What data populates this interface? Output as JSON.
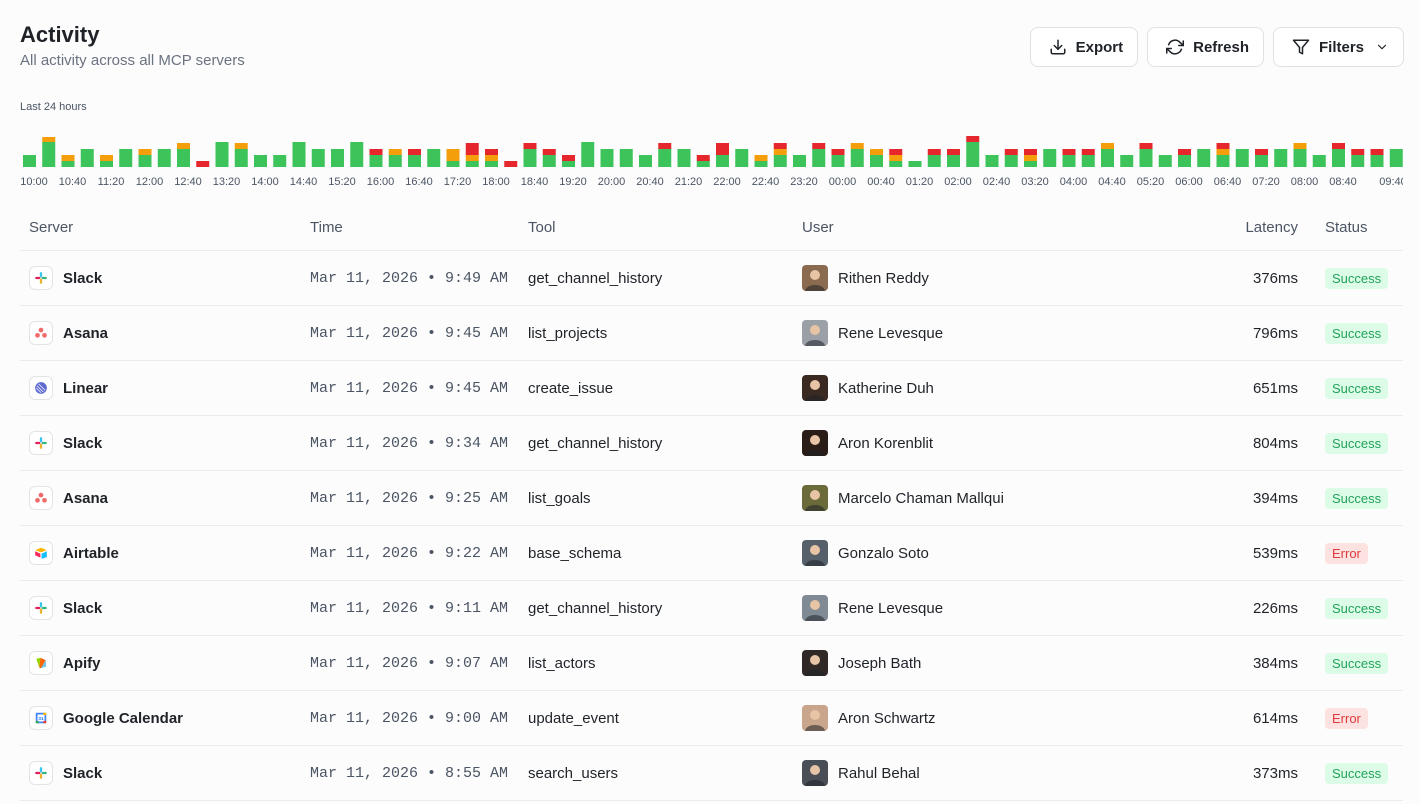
{
  "header": {
    "title": "Activity",
    "subtitle": "All activity across all MCP servers"
  },
  "toolbar": {
    "export_label": "Export",
    "refresh_label": "Refresh",
    "filters_label": "Filters"
  },
  "range_label": "Last 24 hours",
  "colors": {
    "success": "#3cc45a",
    "warning": "#f59e0b",
    "error": "#e5262d",
    "success_badge_bg": "#dcfce7",
    "error_badge_bg": "#fde2e2"
  },
  "chart_data": {
    "type": "bar",
    "stacked": true,
    "series_colors": [
      "#3cc45a",
      "#f59e0b",
      "#e5262d"
    ],
    "bars": [
      [
        12,
        0,
        0
      ],
      [
        25,
        5,
        0
      ],
      [
        6,
        6,
        0
      ],
      [
        18,
        0,
        0
      ],
      [
        6,
        6,
        0
      ],
      [
        18,
        0,
        0
      ],
      [
        12,
        6,
        0
      ],
      [
        18,
        0,
        0
      ],
      [
        18,
        6,
        0
      ],
      [
        0,
        0,
        6
      ],
      [
        25,
        0,
        0
      ],
      [
        18,
        6,
        0
      ],
      [
        12,
        0,
        0
      ],
      [
        12,
        0,
        0
      ],
      [
        25,
        0,
        0
      ],
      [
        18,
        0,
        0
      ],
      [
        18,
        0,
        0
      ],
      [
        25,
        0,
        0
      ],
      [
        12,
        0,
        6
      ],
      [
        12,
        6,
        0
      ],
      [
        12,
        0,
        6
      ],
      [
        18,
        0,
        0
      ],
      [
        6,
        12,
        0
      ],
      [
        6,
        6,
        12
      ],
      [
        6,
        6,
        6
      ],
      [
        0,
        0,
        6
      ],
      [
        18,
        0,
        6
      ],
      [
        12,
        0,
        6
      ],
      [
        6,
        0,
        6
      ],
      [
        25,
        0,
        0
      ],
      [
        18,
        0,
        0
      ],
      [
        18,
        0,
        0
      ],
      [
        12,
        0,
        0
      ],
      [
        18,
        0,
        6
      ],
      [
        18,
        0,
        0
      ],
      [
        6,
        0,
        6
      ],
      [
        12,
        0,
        12
      ],
      [
        18,
        0,
        0
      ],
      [
        6,
        6,
        0
      ],
      [
        12,
        6,
        6
      ],
      [
        12,
        0,
        0
      ],
      [
        18,
        0,
        6
      ],
      [
        12,
        0,
        6
      ],
      [
        18,
        6,
        0
      ],
      [
        12,
        6,
        0
      ],
      [
        6,
        6,
        6
      ],
      [
        6,
        0,
        0
      ],
      [
        12,
        0,
        6
      ],
      [
        12,
        0,
        6
      ],
      [
        25,
        0,
        6
      ],
      [
        12,
        0,
        0
      ],
      [
        12,
        0,
        6
      ],
      [
        6,
        6,
        6
      ],
      [
        18,
        0,
        0
      ],
      [
        12,
        0,
        6
      ],
      [
        12,
        0,
        6
      ],
      [
        18,
        6,
        0
      ],
      [
        12,
        0,
        0
      ],
      [
        18,
        0,
        6
      ],
      [
        12,
        0,
        0
      ],
      [
        12,
        0,
        6
      ],
      [
        18,
        0,
        0
      ],
      [
        12,
        6,
        6
      ],
      [
        18,
        0,
        0
      ],
      [
        12,
        0,
        6
      ],
      [
        18,
        0,
        0
      ],
      [
        18,
        6,
        0
      ],
      [
        12,
        0,
        0
      ],
      [
        18,
        0,
        6
      ],
      [
        12,
        0,
        6
      ],
      [
        12,
        0,
        6
      ],
      [
        18,
        0,
        0
      ]
    ],
    "x_tick_labels": [
      "10:00",
      "10:40",
      "11:20",
      "12:00",
      "12:40",
      "13:20",
      "14:00",
      "14:40",
      "15:20",
      "16:00",
      "16:40",
      "17:20",
      "18:00",
      "18:40",
      "19:20",
      "20:00",
      "20:40",
      "21:20",
      "22:00",
      "22:40",
      "23:20",
      "00:00",
      "00:40",
      "01:20",
      "02:00",
      "02:40",
      "03:20",
      "04:00",
      "04:40",
      "05:20",
      "06:00",
      "06:40",
      "07:20",
      "08:00",
      "08:40",
      "09:40"
    ]
  },
  "table": {
    "columns": [
      "Server",
      "Time",
      "Tool",
      "User",
      "Latency",
      "Status"
    ],
    "rows": [
      {
        "server": "Slack",
        "icon": "slack-icon",
        "time": "Mar 11, 2026 • 9:49 AM",
        "tool": "get_channel_history",
        "user": "Rithen Reddy",
        "avatar": "#8a6b4f",
        "latency": "376ms",
        "status": "Success"
      },
      {
        "server": "Asana",
        "icon": "asana-icon",
        "time": "Mar 11, 2026 • 9:45 AM",
        "tool": "list_projects",
        "user": "Rene Levesque",
        "avatar": "#9aa0a6",
        "latency": "796ms",
        "status": "Success"
      },
      {
        "server": "Linear",
        "icon": "linear-icon",
        "time": "Mar 11, 2026 • 9:45 AM",
        "tool": "create_issue",
        "user": "Katherine Duh",
        "avatar": "#3b2a22",
        "latency": "651ms",
        "status": "Success"
      },
      {
        "server": "Slack",
        "icon": "slack-icon",
        "time": "Mar 11, 2026 • 9:34 AM",
        "tool": "get_channel_history",
        "user": "Aron Korenblit",
        "avatar": "#2a1c16",
        "latency": "804ms",
        "status": "Success"
      },
      {
        "server": "Asana",
        "icon": "asana-icon",
        "time": "Mar 11, 2026 • 9:25 AM",
        "tool": "list_goals",
        "user": "Marcelo Chaman Mallqui",
        "avatar": "#6b6a3a",
        "latency": "394ms",
        "status": "Success"
      },
      {
        "server": "Airtable",
        "icon": "airtable-icon",
        "time": "Mar 11, 2026 • 9:22 AM",
        "tool": "base_schema",
        "user": "Gonzalo Soto",
        "avatar": "#55606a",
        "latency": "539ms",
        "status": "Error"
      },
      {
        "server": "Slack",
        "icon": "slack-icon",
        "time": "Mar 11, 2026 • 9:11 AM",
        "tool": "get_channel_history",
        "user": "Rene Levesque",
        "avatar": "#7f8a94",
        "latency": "226ms",
        "status": "Success"
      },
      {
        "server": "Apify",
        "icon": "apify-icon",
        "time": "Mar 11, 2026 • 9:07 AM",
        "tool": "list_actors",
        "user": "Joseph Bath",
        "avatar": "#2f2826",
        "latency": "384ms",
        "status": "Success"
      },
      {
        "server": "Google Calendar",
        "icon": "google-calendar-icon",
        "time": "Mar 11, 2026 • 9:00 AM",
        "tool": "update_event",
        "user": "Aron Schwartz",
        "avatar": "#c9a58b",
        "latency": "614ms",
        "status": "Error"
      },
      {
        "server": "Slack",
        "icon": "slack-icon",
        "time": "Mar 11, 2026 • 8:55 AM",
        "tool": "search_users",
        "user": "Rahul Behal",
        "avatar": "#4a4f57",
        "latency": "373ms",
        "status": "Success"
      }
    ]
  }
}
